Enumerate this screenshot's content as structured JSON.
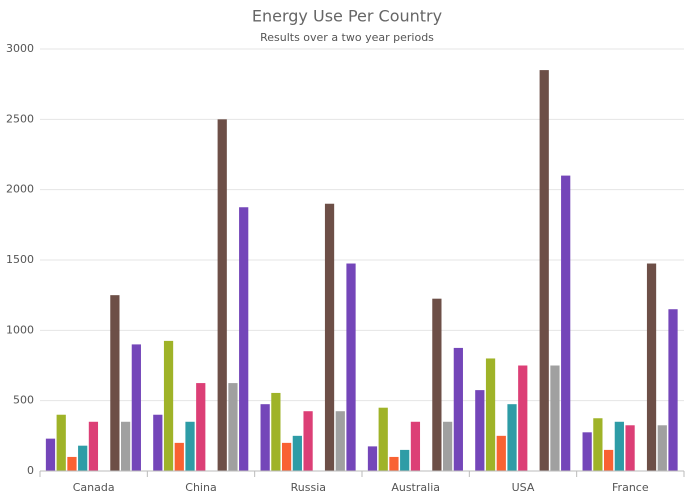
{
  "chart_data": {
    "type": "bar",
    "title": "Energy Use Per Country",
    "subtitle": "Results over a two year periods",
    "categories": [
      "Canada",
      "China",
      "Russia",
      "Australia",
      "USA",
      "France"
    ],
    "series": [
      {
        "color": "#7446b9",
        "values": [
          230,
          400,
          475,
          175,
          575,
          275
        ]
      },
      {
        "color": "#9fb328",
        "values": [
          400,
          925,
          555,
          450,
          800,
          375
        ]
      },
      {
        "color": "#f96232",
        "values": [
          100,
          200,
          200,
          100,
          250,
          150
        ]
      },
      {
        "color": "#2e9ca6",
        "values": [
          180,
          350,
          250,
          150,
          475,
          350
        ]
      },
      {
        "color": "#dc3f76",
        "values": [
          350,
          625,
          425,
          350,
          750,
          325
        ]
      },
      {
        "color": "#ff9800",
        "values": [
          null,
          null,
          null,
          null,
          null,
          null
        ]
      },
      {
        "color": "#6d4f47",
        "values": [
          1250,
          2500,
          1900,
          1225,
          2850,
          1475
        ]
      },
      {
        "color": "#a0a0a0",
        "values": [
          350,
          625,
          425,
          350,
          750,
          325
        ]
      },
      {
        "color": "#7446b9",
        "values": [
          900,
          1875,
          1475,
          875,
          2100,
          1150
        ]
      }
    ],
    "ylim": [
      0,
      3000
    ],
    "yticks": [
      0,
      500,
      1000,
      1500,
      2000,
      2500,
      3000
    ],
    "grid": true
  }
}
